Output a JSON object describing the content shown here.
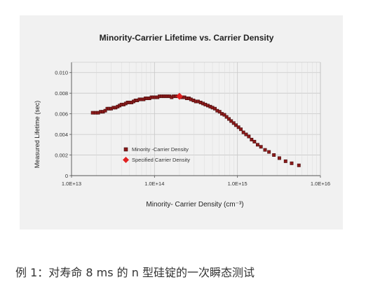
{
  "caption": "例 1：对寿命 8 ms 的 n 型硅锭的一次瞬态测试",
  "chart_data": {
    "type": "scatter",
    "title": "Minority-Carrier Lifetime vs. Carrier Density",
    "xlabel": "Minority- Carrier Density (cm⁻³)",
    "ylabel": "Measured Lifetime (sec)",
    "x_scale": "log",
    "xlim": [
      10000000000000.0,
      1e+16
    ],
    "ylim": [
      0,
      0.011
    ],
    "x_ticks": [
      "1.0E+13",
      "1.0E+14",
      "1.0E+15",
      "1.0E+16"
    ],
    "y_ticks": [
      "0",
      "0.002",
      "0.004",
      "0.006",
      "0.008",
      "0.010"
    ],
    "grid": true,
    "legend_position": "lower-left",
    "colors": {
      "series": "#8b1a1a",
      "highlight": "#e02020",
      "grid": "#c8c8c8",
      "panel": "#f1f1f1"
    },
    "series": [
      {
        "name": "Minority -Carrier Density",
        "marker": "square",
        "points": [
          [
            18000000000000.0,
            0.0061
          ],
          [
            19500000000000.0,
            0.0061
          ],
          [
            21000000000000.0,
            0.0061
          ],
          [
            22500000000000.0,
            0.0062
          ],
          [
            24000000000000.0,
            0.0062
          ],
          [
            25500000000000.0,
            0.0063
          ],
          [
            27000000000000.0,
            0.0065
          ],
          [
            28500000000000.0,
            0.0065
          ],
          [
            30000000000000.0,
            0.0065
          ],
          [
            32000000000000.0,
            0.0066
          ],
          [
            34000000000000.0,
            0.0066
          ],
          [
            36000000000000.0,
            0.0067
          ],
          [
            38000000000000.0,
            0.0068
          ],
          [
            40000000000000.0,
            0.0069
          ],
          [
            42500000000000.0,
            0.0069
          ],
          [
            45000000000000.0,
            0.007
          ],
          [
            47500000000000.0,
            0.0071
          ],
          [
            50000000000000.0,
            0.0071
          ],
          [
            53000000000000.0,
            0.0071
          ],
          [
            56000000000000.0,
            0.0072
          ],
          [
            59000000000000.0,
            0.0073
          ],
          [
            62000000000000.0,
            0.0073
          ],
          [
            66000000000000.0,
            0.0074
          ],
          [
            70000000000000.0,
            0.0074
          ],
          [
            74000000000000.0,
            0.0074
          ],
          [
            78000000000000.0,
            0.0075
          ],
          [
            82000000000000.0,
            0.0075
          ],
          [
            87000000000000.0,
            0.0075
          ],
          [
            92000000000000.0,
            0.0076
          ],
          [
            97000000000000.0,
            0.0076
          ],
          [
            103000000000000.0,
            0.0076
          ],
          [
            109000000000000.0,
            0.0076
          ],
          [
            115000000000000.0,
            0.0077
          ],
          [
            122000000000000.0,
            0.0077
          ],
          [
            129000000000000.0,
            0.0077
          ],
          [
            136000000000000.0,
            0.0077
          ],
          [
            144000000000000.0,
            0.0077
          ],
          [
            152000000000000.0,
            0.0077
          ],
          [
            161000000000000.0,
            0.0076
          ],
          [
            170000000000000.0,
            0.0077
          ],
          [
            180000000000000.0,
            0.0077
          ],
          [
            190000000000000.0,
            0.0077
          ],
          [
            215000000000000.0,
            0.0076
          ],
          [
            230000000000000.0,
            0.0076
          ],
          [
            245000000000000.0,
            0.0075
          ],
          [
            260000000000000.0,
            0.0075
          ],
          [
            275000000000000.0,
            0.0074
          ],
          [
            295000000000000.0,
            0.0073
          ],
          [
            315000000000000.0,
            0.0072
          ],
          [
            335000000000000.0,
            0.0072
          ],
          [
            360000000000000.0,
            0.0071
          ],
          [
            385000000000000.0,
            0.007
          ],
          [
            410000000000000.0,
            0.0069
          ],
          [
            440000000000000.0,
            0.0068
          ],
          [
            470000000000000.0,
            0.0067
          ],
          [
            500000000000000.0,
            0.0066
          ],
          [
            535000000000000.0,
            0.0065
          ],
          [
            570000000000000.0,
            0.0063
          ],
          [
            610000000000000.0,
            0.0062
          ],
          [
            650000000000000.0,
            0.006
          ],
          [
            695000000000000.0,
            0.0059
          ],
          [
            740000000000000.0,
            0.0057
          ],
          [
            790000000000000.0,
            0.0055
          ],
          [
            840000000000000.0,
            0.0053
          ],
          [
            900000000000000.0,
            0.0051
          ],
          [
            960000000000000.0,
            0.0049
          ],
          [
            1030000000000000.0,
            0.0047
          ],
          [
            1100000000000000.0,
            0.0045
          ],
          [
            1180000000000000.0,
            0.0042
          ],
          [
            1270000000000000.0,
            0.004
          ],
          [
            1370000000000000.0,
            0.0038
          ],
          [
            1480000000000000.0,
            0.0035
          ],
          [
            1600000000000000.0,
            0.0033
          ],
          [
            1750000000000000.0,
            0.003
          ],
          [
            1920000000000000.0,
            0.0028
          ],
          [
            2150000000000000.0,
            0.0025
          ],
          [
            2400000000000000.0,
            0.0023
          ],
          [
            2750000000000000.0,
            0.002
          ],
          [
            3200000000000000.0,
            0.0017
          ],
          [
            3800000000000000.0,
            0.0014
          ],
          [
            4500000000000000.0,
            0.0012
          ],
          [
            5500000000000000.0,
            0.001
          ]
        ]
      },
      {
        "name": "Specified Carrier Density",
        "marker": "diamond",
        "points": [
          [
            200000000000000.0,
            0.0077
          ]
        ]
      }
    ]
  }
}
